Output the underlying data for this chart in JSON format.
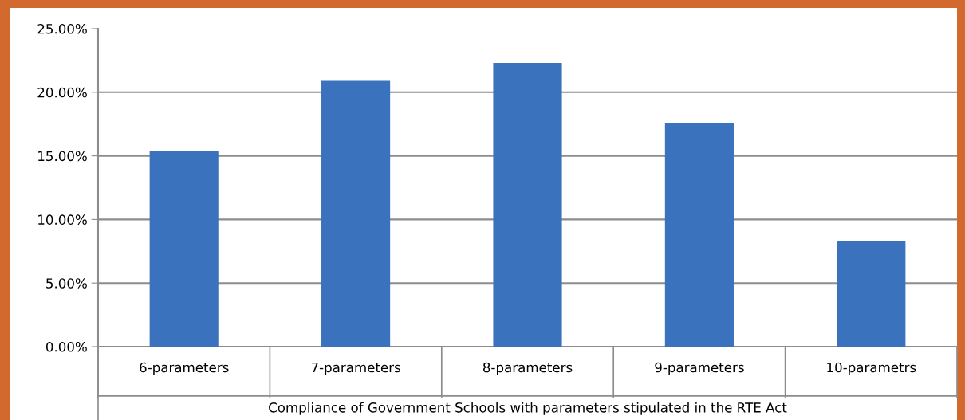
{
  "chart_data": {
    "type": "bar",
    "categories": [
      "6-parameters",
      "7-parameters",
      "8-parameters",
      "9-parameters",
      "10-parametrs"
    ],
    "values": [
      15.4,
      20.9,
      22.3,
      17.6,
      8.3
    ],
    "color": "#3a72bd",
    "xlabel": "Compliance of Government Schools with parameters stipulated in the RTE Act",
    "ylim": [
      0,
      25
    ],
    "yticks": [
      {
        "value": 0,
        "label": "0.00%"
      },
      {
        "value": 5,
        "label": "5.00%"
      },
      {
        "value": 10,
        "label": "10.00%"
      },
      {
        "value": 15,
        "label": "15.00%"
      },
      {
        "value": 20,
        "label": "20.00%"
      },
      {
        "value": 25,
        "label": "25.00%"
      }
    ],
    "grid": "y",
    "legend": false
  }
}
